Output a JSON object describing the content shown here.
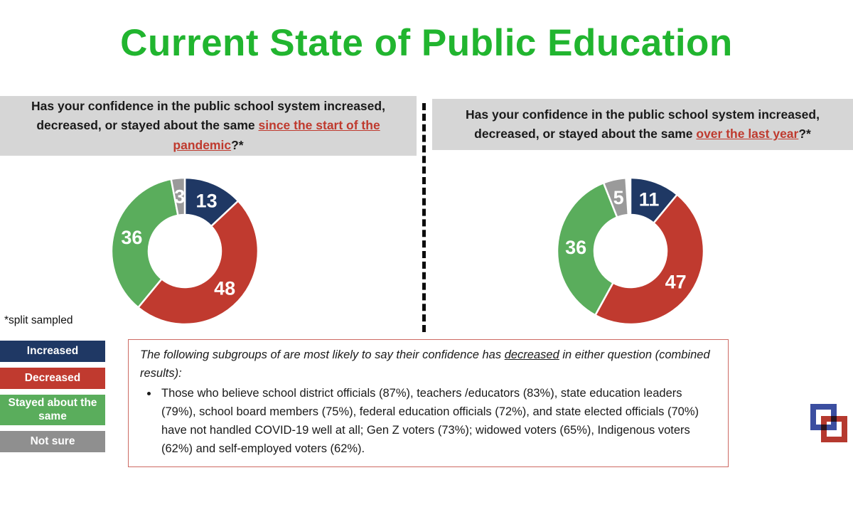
{
  "title": "Current State of Public Education",
  "footnote": "*split sampled",
  "panels": [
    {
      "question": {
        "before": "Has your confidence in the public school system increased, decreased, or stayed about the same ",
        "highlight": "since the start of the pandemic",
        "after": "?*"
      }
    },
    {
      "question": {
        "before": "Has your confidence in the public school system increased, decreased, or stayed about the same ",
        "highlight": "over the last year",
        "after": "?*"
      }
    }
  ],
  "chart_data": [
    {
      "type": "pie",
      "subtype": "donut",
      "title": "Confidence in public school system since the start of the pandemic (%)",
      "labels": [
        "Increased",
        "Decreased",
        "Stayed about the same",
        "Not sure"
      ],
      "values": [
        13,
        48,
        36,
        3
      ],
      "colors": [
        "#1f3864",
        "#c03a2f",
        "#5aad5c",
        "#9a9a9a"
      ],
      "start_angle_deg": 0,
      "direction": "clockwise",
      "data_labels": "values shown in white inside slices",
      "legend_position": "left column below charts"
    },
    {
      "type": "pie",
      "subtype": "donut",
      "title": "Confidence in public school system over the last year (%)",
      "labels": [
        "Increased",
        "Decreased",
        "Stayed about the same",
        "Not sure"
      ],
      "values": [
        11,
        47,
        36,
        5
      ],
      "colors": [
        "#1f3864",
        "#c03a2f",
        "#5aad5c",
        "#9a9a9a"
      ],
      "start_angle_deg": 0,
      "direction": "clockwise",
      "data_labels": "values shown in white inside slices",
      "legend_position": "left column below charts"
    }
  ],
  "legend": {
    "items": [
      {
        "label": "Increased",
        "color": "#1f3864"
      },
      {
        "label": "Decreased",
        "color": "#c03a2f"
      },
      {
        "label": "Stayed about the same",
        "color": "#5aad5c"
      },
      {
        "label": "Not sure",
        "color": "#8f8f8f"
      }
    ]
  },
  "note_box": {
    "intro_before": "The following subgroups of are most likely to say their confidence has ",
    "intro_underline": "decreased",
    "intro_after": " in either question (combined results):",
    "bullet": "Those who believe school district officials (87%), teachers /educators (83%), state education leaders (79%), school board members (75%), federal education officials (72%), and state elected officials (70%)  have not handled COVID-19 well at all; Gen Z voters (73%); widowed voters (65%), Indigenous voters (62%) and self-employed voters (62%)."
  },
  "colors": {
    "title_green": "#21b52f",
    "question_highlight_red": "#bf3a2e",
    "header_bg": "#d6d6d6",
    "note_border": "#cd6a63",
    "navy": "#1f3864",
    "red": "#c03a2f",
    "green": "#5aad5c",
    "gray": "#9a9a9a",
    "logo_blue": "#3b4ea0",
    "logo_red": "#b5392f"
  }
}
